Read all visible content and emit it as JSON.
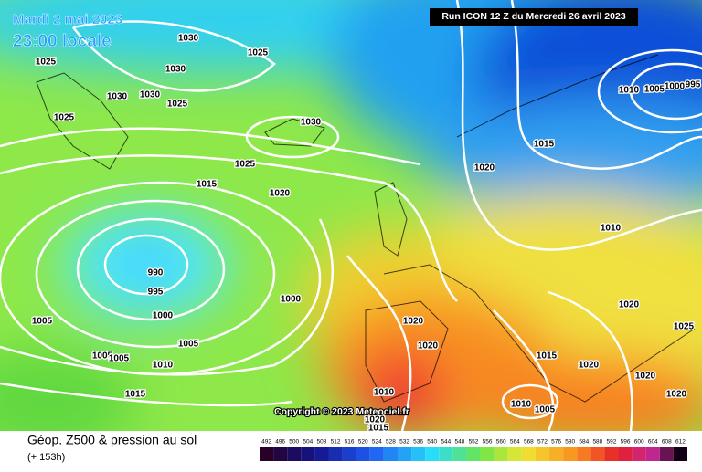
{
  "header": {
    "date": "Mardi 2 mai 2023",
    "time": "23:00 locale",
    "run": "Run ICON 12 Z du Mercredi 26 avril 2023"
  },
  "isobar_labels": [
    1030,
    1025,
    1030,
    1025,
    1030,
    1030,
    1025,
    1025,
    1030,
    1025,
    1015,
    1020,
    990,
    995,
    1000,
    1000,
    1005,
    1005,
    1005,
    1005,
    1010,
    1015,
    1020,
    1020,
    1010,
    1020,
    1015,
    1020,
    1015,
    1010,
    1010,
    1005,
    1000,
    995,
    1020,
    1025,
    1015,
    1020,
    1020,
    1010,
    1005,
    1020
  ],
  "footer": {
    "title": "Géop. Z500 & pression au sol",
    "lead": "(+ 153h)",
    "copyright": "Copyright © 2023 Meteociel.fr"
  },
  "scale": {
    "labels": [
      492,
      496,
      500,
      504,
      508,
      512,
      516,
      520,
      524,
      528,
      532,
      536,
      540,
      544,
      548,
      552,
      556,
      560,
      564,
      568,
      572,
      576,
      580,
      584,
      588,
      592,
      596,
      600,
      604,
      608,
      612
    ]
  }
}
